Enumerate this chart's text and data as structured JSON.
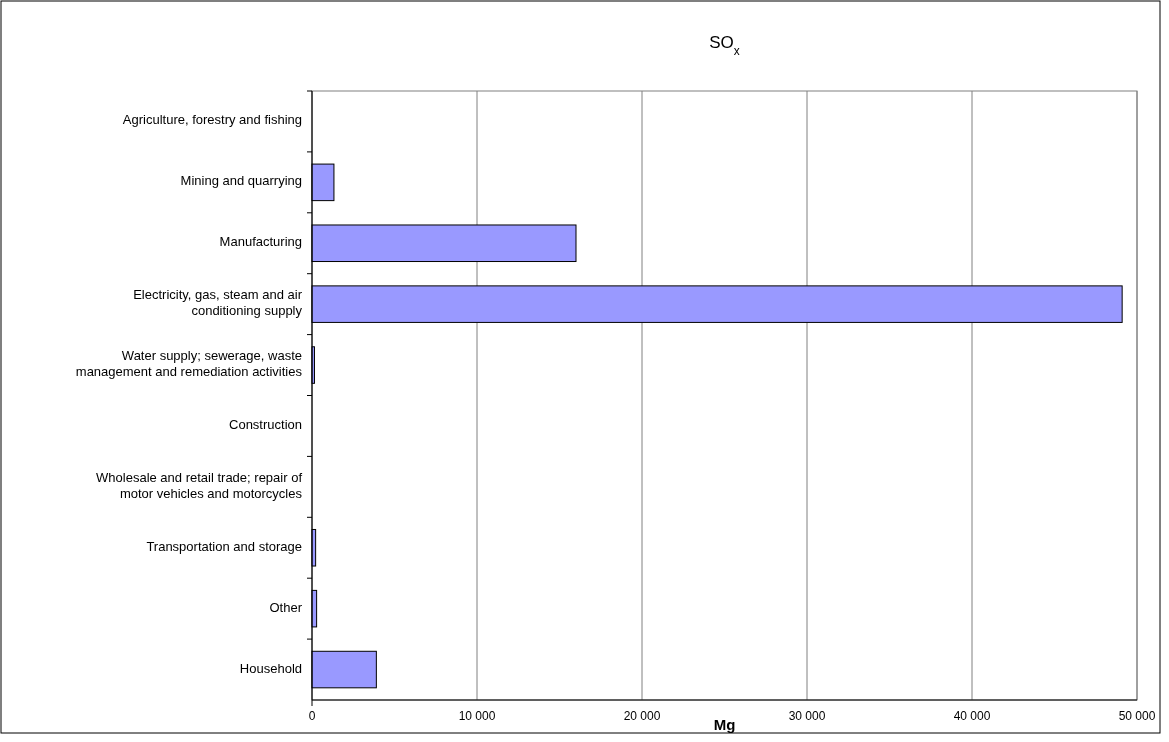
{
  "chart_data": {
    "type": "bar",
    "orientation": "horizontal",
    "title": "SO$_{x}$",
    "xlabel": "Mg",
    "categories": [
      "Agriculture, forestry and fishing",
      "Mining and quarrying",
      "Manufacturing",
      "Electricity, gas, steam and air conditioning supply",
      "Water supply; sewerage, waste management and remediation activities",
      "Construction",
      "Wholesale and retail trade; repair of motor vehicles and motorcycles",
      "Transportation and storage",
      "Other",
      "Household"
    ],
    "values": [
      0,
      1330,
      16000,
      49100,
      150,
      0,
      0,
      220,
      280,
      3900
    ],
    "color": "#9999ff",
    "xlim": [
      0,
      50000
    ],
    "xticks": [
      {
        "value": 0,
        "label": "0"
      },
      {
        "value": 10000,
        "label": "10 000"
      },
      {
        "value": 20000,
        "label": "20 000"
      },
      {
        "value": 30000,
        "label": "30 000"
      },
      {
        "value": 40000,
        "label": "40 000"
      },
      {
        "value": 50000,
        "label": "50 000"
      }
    ],
    "grid": "x"
  }
}
